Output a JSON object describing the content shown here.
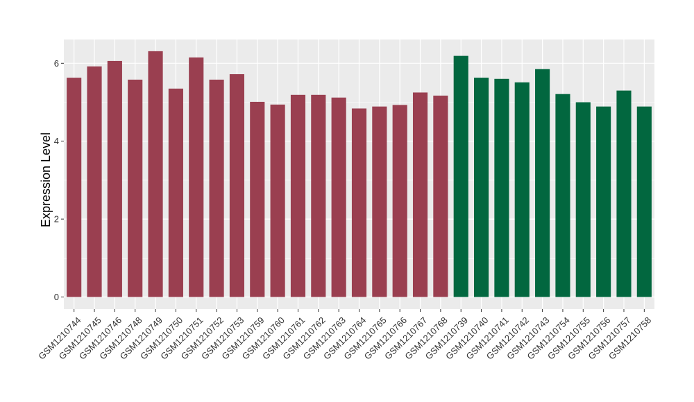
{
  "chart_data": {
    "type": "bar",
    "title": "",
    "xlabel": "",
    "ylabel": "Expression Level",
    "ylim": [
      0,
      6.6
    ],
    "yticks": [
      0,
      2,
      4,
      6
    ],
    "ytick_labels": [
      "0",
      "2",
      "4",
      "6"
    ],
    "grid": true,
    "legend": "none",
    "colors": {
      "group_a": "#9a3f50",
      "group_b": "#02673f",
      "panel": "#ebebeb",
      "grid": "#ffffff"
    },
    "categories": [
      "GSM1210744",
      "GSM1210745",
      "GSM1210746",
      "GSM1210748",
      "GSM1210749",
      "GSM1210750",
      "GSM1210751",
      "GSM1210752",
      "GSM1210753",
      "GSM1210759",
      "GSM1210760",
      "GSM1210761",
      "GSM1210762",
      "GSM1210763",
      "GSM1210764",
      "GSM1210765",
      "GSM1210766",
      "GSM1210767",
      "GSM1210768",
      "GSM1210739",
      "GSM1210740",
      "GSM1210741",
      "GSM1210742",
      "GSM1210743",
      "GSM1210754",
      "GSM1210755",
      "GSM1210756",
      "GSM1210757",
      "GSM1210758"
    ],
    "values": [
      5.63,
      5.92,
      6.06,
      5.58,
      6.31,
      5.35,
      6.15,
      5.58,
      5.72,
      5.01,
      4.94,
      5.19,
      5.19,
      5.12,
      4.84,
      4.89,
      4.93,
      5.25,
      5.17,
      6.19,
      5.63,
      5.6,
      5.51,
      5.85,
      5.21,
      5.0,
      4.89,
      5.3,
      4.89
    ],
    "groups": [
      "a",
      "a",
      "a",
      "a",
      "a",
      "a",
      "a",
      "a",
      "a",
      "a",
      "a",
      "a",
      "a",
      "a",
      "a",
      "a",
      "a",
      "a",
      "a",
      "b",
      "b",
      "b",
      "b",
      "b",
      "b",
      "b",
      "b",
      "b",
      "b"
    ]
  }
}
